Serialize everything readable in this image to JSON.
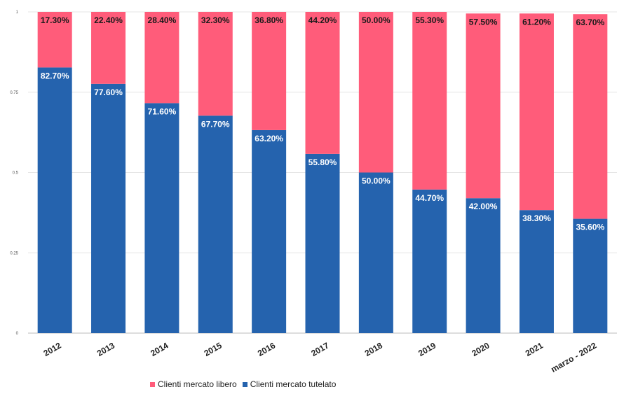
{
  "chart_data": {
    "type": "bar",
    "stacked": true,
    "categories": [
      "2012",
      "2013",
      "2014",
      "2015",
      "2016",
      "2017",
      "2018",
      "2019",
      "2020",
      "2021",
      "marzo - 2022"
    ],
    "series": [
      {
        "name": "Clienti mercato tutelato",
        "color": "#2563ae",
        "values": [
          0.827,
          0.776,
          0.716,
          0.677,
          0.632,
          0.558,
          0.5,
          0.447,
          0.42,
          0.383,
          0.356
        ],
        "labels": [
          "82.70%",
          "77.60%",
          "71.60%",
          "67.70%",
          "63.20%",
          "55.80%",
          "50.00%",
          "44.70%",
          "42.00%",
          "38.30%",
          "35.60%"
        ]
      },
      {
        "name": "Clienti mercato libero",
        "color": "#ff5c7a",
        "values": [
          0.173,
          0.224,
          0.284,
          0.323,
          0.368,
          0.442,
          0.5,
          0.553,
          0.575,
          0.612,
          0.637
        ],
        "labels": [
          "17.30%",
          "22.40%",
          "28.40%",
          "32.30%",
          "36.80%",
          "44.20%",
          "50.00%",
          "55.30%",
          "57.50%",
          "61.20%",
          "63.70%"
        ]
      }
    ],
    "y_ticks": [
      0,
      0.25,
      0.5,
      0.75,
      1
    ],
    "y_tick_labels": [
      "0",
      "0.25",
      "0.5",
      "0.75",
      "1"
    ],
    "ylim": [
      0,
      1
    ],
    "grid": true,
    "legend_position": "bottom-left",
    "legend": [
      {
        "label": "Clienti mercato libero",
        "color": "#ff5c7a"
      },
      {
        "label": "Clienti mercato tutelato",
        "color": "#2563ae"
      }
    ]
  }
}
